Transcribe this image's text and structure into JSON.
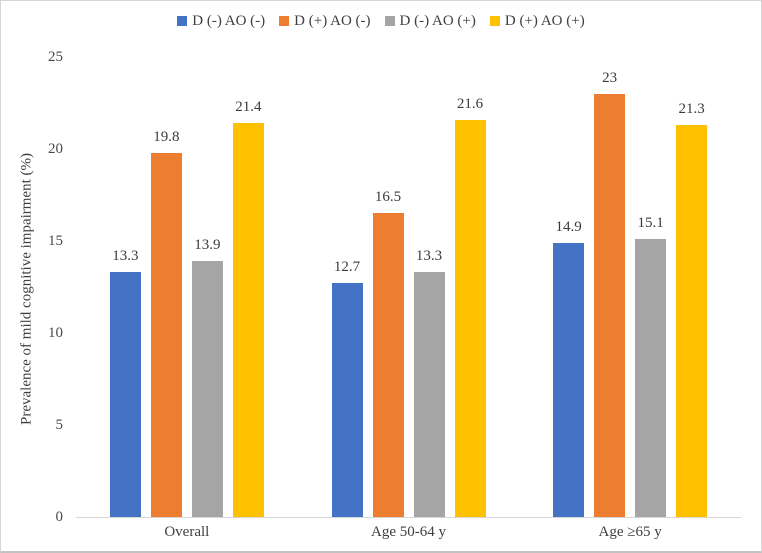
{
  "chart_data": {
    "type": "bar",
    "title": "",
    "ylabel": "Prevalence of mild cognitive impairment (%)",
    "xlabel": "",
    "categories": [
      "Overall",
      "Age 50-64 y",
      "Age ≥65 y"
    ],
    "series": [
      {
        "name": "D (-) AO (-)",
        "color": "#4472C4",
        "values": [
          13.3,
          12.7,
          14.9
        ]
      },
      {
        "name": "D (+) AO (-)",
        "color": "#ED7D31",
        "values": [
          19.8,
          16.5,
          23
        ]
      },
      {
        "name": "D (-) AO (+)",
        "color": "#A5A5A5",
        "values": [
          13.9,
          13.3,
          15.1
        ]
      },
      {
        "name": "D (+) AO (+)",
        "color": "#FFC000",
        "values": [
          21.4,
          21.6,
          21.3
        ]
      }
    ],
    "ylim": [
      0,
      25
    ],
    "yticks": [
      0,
      5,
      10,
      15,
      20,
      25
    ],
    "grid": false,
    "legend_position": "top",
    "data_labels_shown": true
  }
}
